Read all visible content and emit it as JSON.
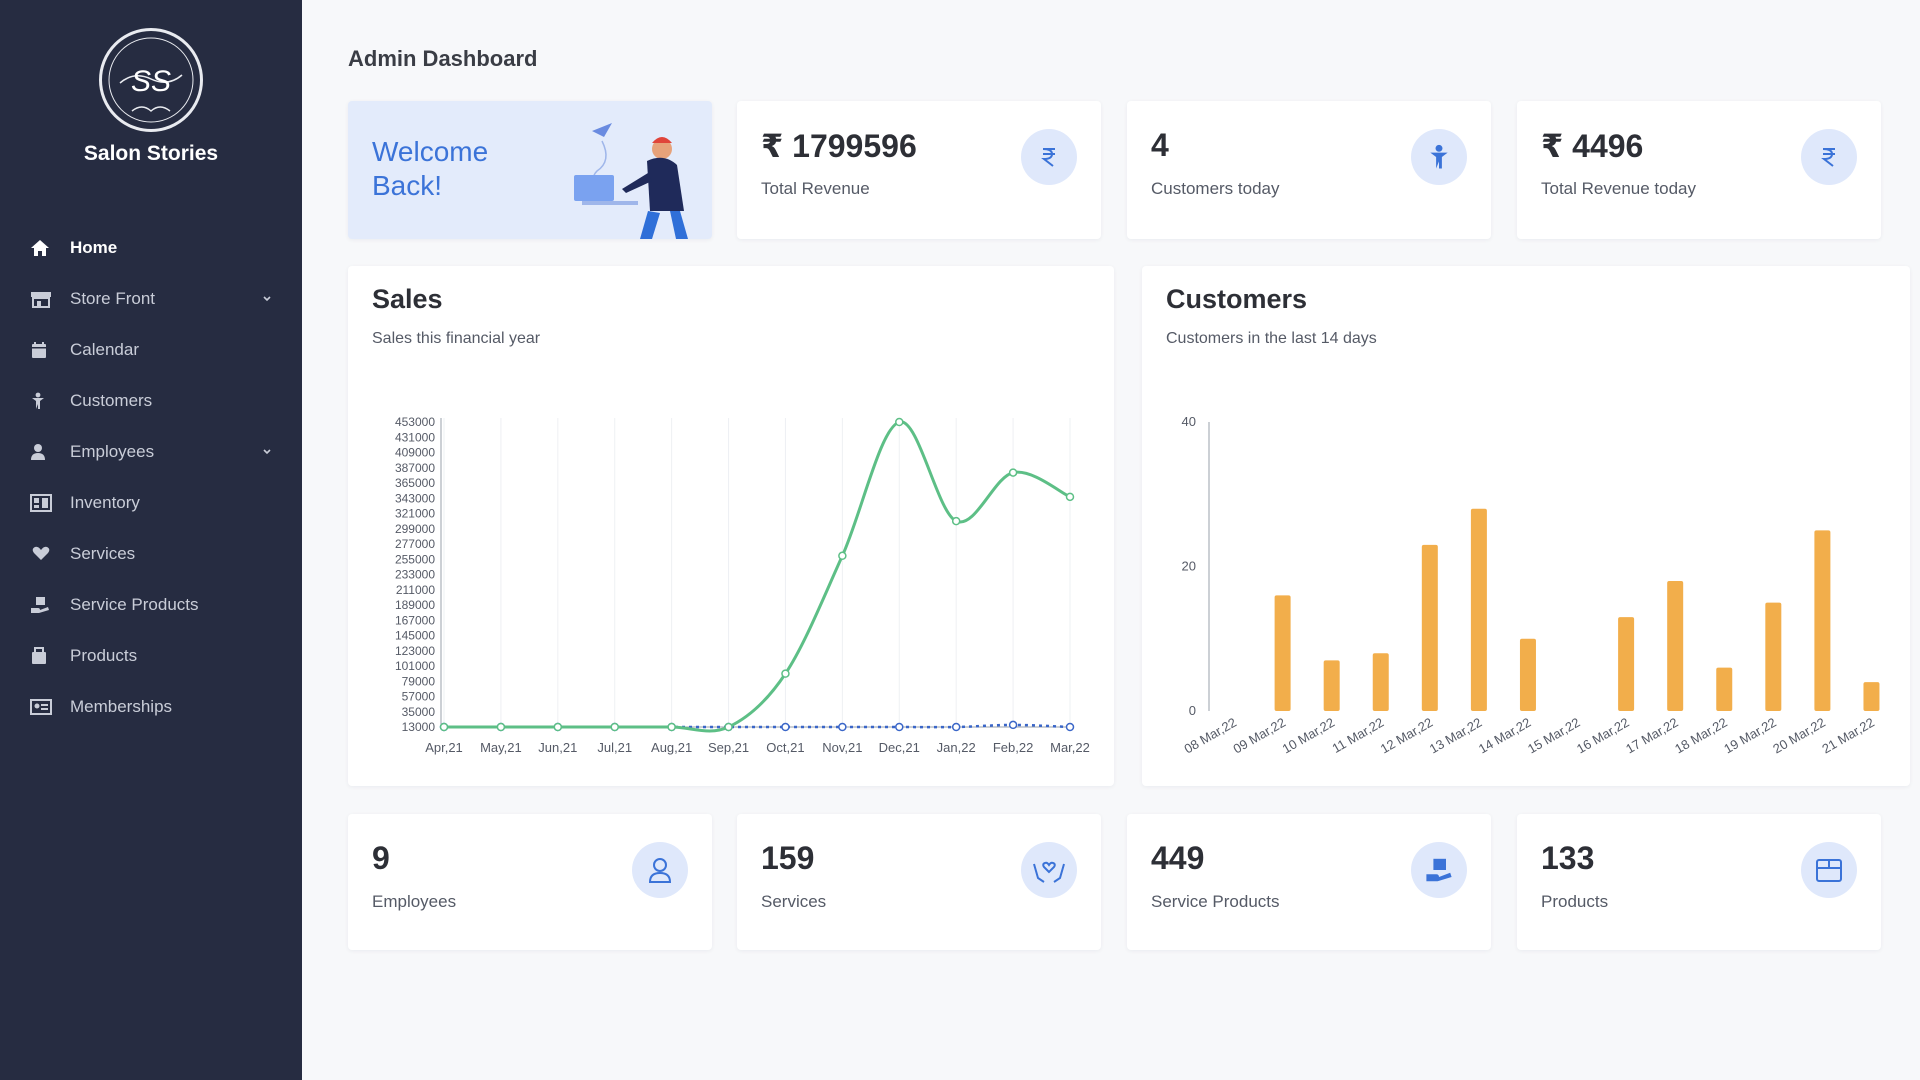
{
  "brand": {
    "name": "Salon Stories",
    "logo_text": "SS"
  },
  "sidebar": {
    "items": [
      {
        "label": "Home",
        "icon": "home-icon",
        "active": true,
        "expandable": false
      },
      {
        "label": "Store Front",
        "icon": "store-icon",
        "active": false,
        "expandable": true
      },
      {
        "label": "Calendar",
        "icon": "calendar-icon",
        "active": false,
        "expandable": false
      },
      {
        "label": "Customers",
        "icon": "customer-icon",
        "active": false,
        "expandable": false
      },
      {
        "label": "Employees",
        "icon": "user-icon",
        "active": false,
        "expandable": true
      },
      {
        "label": "Inventory",
        "icon": "inventory-icon",
        "active": false,
        "expandable": false
      },
      {
        "label": "Services",
        "icon": "services-icon",
        "active": false,
        "expandable": false
      },
      {
        "label": "Service Products",
        "icon": "service-products-icon",
        "active": false,
        "expandable": false
      },
      {
        "label": "Products",
        "icon": "products-icon",
        "active": false,
        "expandable": false
      },
      {
        "label": "Memberships",
        "icon": "memberships-icon",
        "active": false,
        "expandable": false
      }
    ]
  },
  "header": {
    "title": "Admin Dashboard"
  },
  "welcome": {
    "line1": "Welcome",
    "line2": "Back!"
  },
  "stats_top": [
    {
      "value": "₹ 1799596",
      "label": "Total Revenue",
      "icon": "rupee-icon"
    },
    {
      "value": "4",
      "label": "Customers today",
      "icon": "customer-icon"
    },
    {
      "value": "₹ 4496",
      "label": "Total Revenue today",
      "icon": "rupee-icon"
    }
  ],
  "stats_bottom": [
    {
      "value": "9",
      "label": "Employees",
      "icon": "user-icon"
    },
    {
      "value": "159",
      "label": "Services",
      "icon": "services-icon"
    },
    {
      "value": "449",
      "label": "Service Products",
      "icon": "service-products-icon"
    },
    {
      "value": "133",
      "label": "Products",
      "icon": "products-icon"
    }
  ],
  "colors": {
    "sidebar_bg": "#262c41",
    "accent_blue": "#3b73d8",
    "line_green": "#5dbf86",
    "line_blue": "#3a66c8",
    "bar_orange": "#f2ae4b"
  },
  "chart_data": [
    {
      "type": "line",
      "title": "Sales",
      "subtitle": "Sales this financial year",
      "categories": [
        "Apr,21",
        "May,21",
        "Jun,21",
        "Jul,21",
        "Aug,21",
        "Sep,21",
        "Oct,21",
        "Nov,21",
        "Dec,21",
        "Jan,22",
        "Feb,22",
        "Mar,22"
      ],
      "yticks": [
        13000,
        35000,
        57000,
        79000,
        101000,
        123000,
        145000,
        167000,
        189000,
        211000,
        233000,
        255000,
        277000,
        299000,
        321000,
        343000,
        365000,
        387000,
        409000,
        431000,
        453000
      ],
      "ylim": [
        13000,
        453000
      ],
      "series": [
        {
          "values": [
            13000,
            13000,
            13000,
            13000,
            13000,
            13000,
            90000,
            260000,
            453000,
            310000,
            380000,
            345000
          ]
        },
        {
          "values": [
            13000,
            13000,
            13000,
            13000,
            13000,
            13000,
            13000,
            13000,
            13000,
            13000,
            16000,
            13000
          ]
        }
      ],
      "grid": "vertical"
    },
    {
      "type": "bar",
      "title": "Customers",
      "subtitle": "Customers in the last 14 days",
      "categories": [
        "08 Mar,22",
        "09 Mar,22",
        "10 Mar,22",
        "11 Mar,22",
        "12 Mar,22",
        "13 Mar,22",
        "14 Mar,22",
        "15 Mar,22",
        "16 Mar,22",
        "17 Mar,22",
        "18 Mar,22",
        "19 Mar,22",
        "20 Mar,22",
        "21 Mar,22"
      ],
      "values": [
        0,
        16,
        7,
        8,
        23,
        28,
        10,
        0,
        13,
        18,
        6,
        15,
        25,
        4
      ],
      "yticks": [
        0,
        20,
        40
      ],
      "ylim": [
        0,
        40
      ]
    }
  ]
}
